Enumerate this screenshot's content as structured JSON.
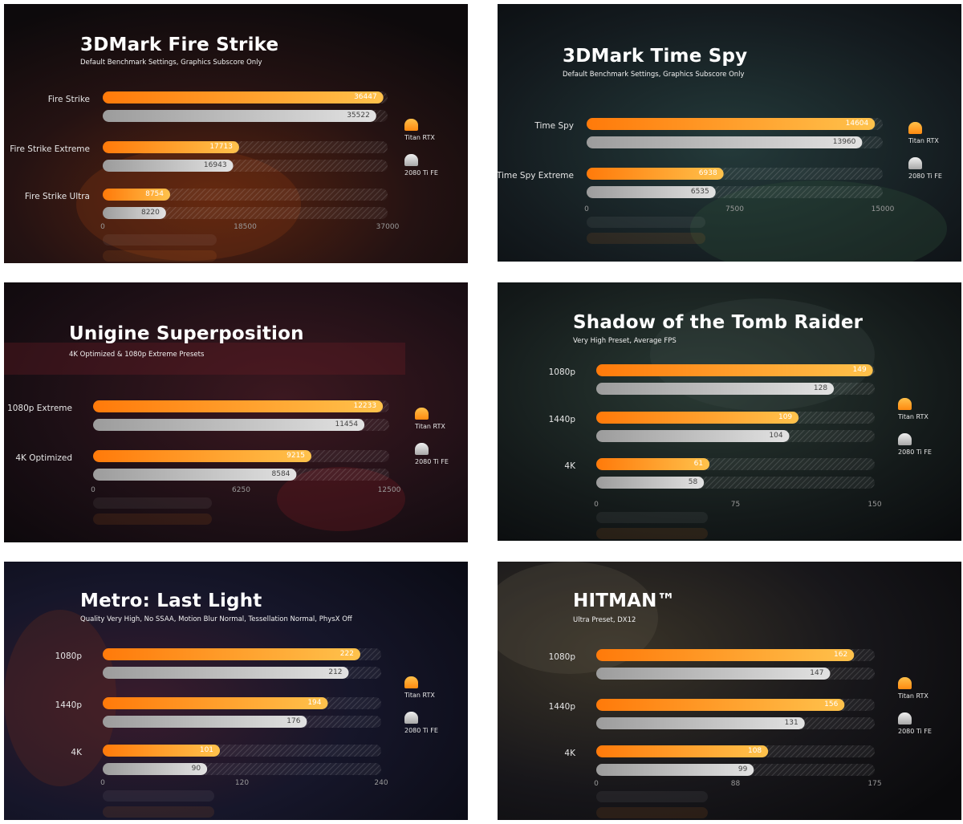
{
  "legend": {
    "series_a": "Titan RTX",
    "series_b": "2080 Ti FE"
  },
  "colors": {
    "titan": "#ff8a10",
    "titan_light": "#ffc24c",
    "fe": "#d6d6d6",
    "fe_dark": "#9c9c9c"
  },
  "chart_data": [
    {
      "type": "bar",
      "orientation": "horizontal",
      "title": "3DMark Fire Strike",
      "subtitle": "Default Benchmark Settings, Graphics Subscore Only",
      "categories": [
        "Fire Strike",
        "Fire Strike Extreme",
        "Fire Strike Ultra"
      ],
      "series": [
        {
          "name": "Titan RTX",
          "values": [
            36447,
            17713,
            8754
          ]
        },
        {
          "name": "2080 Ti FE",
          "values": [
            35522,
            16943,
            8220
          ]
        }
      ],
      "xlim": [
        0,
        37000
      ],
      "ticks": [
        "0",
        "18500",
        "37000"
      ],
      "legend_position": "right"
    },
    {
      "type": "bar",
      "orientation": "horizontal",
      "title": "3DMark Time Spy",
      "subtitle": "Default Benchmark Settings, Graphics Subscore Only",
      "categories": [
        "Time Spy",
        "Time Spy Extreme"
      ],
      "series": [
        {
          "name": "Titan RTX",
          "values": [
            14604,
            6938
          ]
        },
        {
          "name": "2080 Ti FE",
          "values": [
            13960,
            6535
          ]
        }
      ],
      "xlim": [
        0,
        15000
      ],
      "ticks": [
        "0",
        "7500",
        "15000"
      ],
      "legend_position": "right"
    },
    {
      "type": "bar",
      "orientation": "horizontal",
      "title": "Unigine Superposition",
      "subtitle": "4K Optimized & 1080p Extreme Presets",
      "categories": [
        "1080p Extreme",
        "4K Optimized"
      ],
      "series": [
        {
          "name": "Titan RTX",
          "values": [
            12233,
            9215
          ]
        },
        {
          "name": "2080 Ti FE",
          "values": [
            11454,
            8584
          ]
        }
      ],
      "xlim": [
        0,
        12500
      ],
      "ticks": [
        "0",
        "6250",
        "12500"
      ],
      "legend_position": "right"
    },
    {
      "type": "bar",
      "orientation": "horizontal",
      "title": "Shadow of the Tomb Raider",
      "subtitle": "Very High Preset, Average FPS",
      "categories": [
        "1080p",
        "1440p",
        "4K"
      ],
      "series": [
        {
          "name": "Titan RTX",
          "values": [
            149,
            109,
            61
          ]
        },
        {
          "name": "2080 Ti FE",
          "values": [
            128,
            104,
            58
          ]
        }
      ],
      "xlim": [
        0,
        150
      ],
      "ticks": [
        "0",
        "75",
        "150"
      ],
      "legend_position": "right"
    },
    {
      "type": "bar",
      "orientation": "horizontal",
      "title": "Metro: Last Light",
      "subtitle": "Quality Very High, No SSAA, Motion Blur Normal, Tessellation Normal, PhysX Off",
      "categories": [
        "1080p",
        "1440p",
        "4K"
      ],
      "series": [
        {
          "name": "Titan RTX",
          "values": [
            222,
            194,
            101
          ]
        },
        {
          "name": "2080 Ti FE",
          "values": [
            212,
            176,
            90
          ]
        }
      ],
      "xlim": [
        0,
        240
      ],
      "ticks": [
        "0",
        "120",
        "240"
      ],
      "legend_position": "right"
    },
    {
      "type": "bar",
      "orientation": "horizontal",
      "title": "HITMAN™",
      "subtitle": "Ultra Preset, DX12",
      "categories": [
        "1080p",
        "1440p",
        "4K"
      ],
      "series": [
        {
          "name": "Titan RTX",
          "values": [
            162,
            156,
            108
          ]
        },
        {
          "name": "2080 Ti FE",
          "values": [
            147,
            131,
            99
          ]
        }
      ],
      "xlim": [
        0,
        175
      ],
      "ticks": [
        "0",
        "88",
        "175"
      ],
      "legend_position": "right"
    }
  ]
}
